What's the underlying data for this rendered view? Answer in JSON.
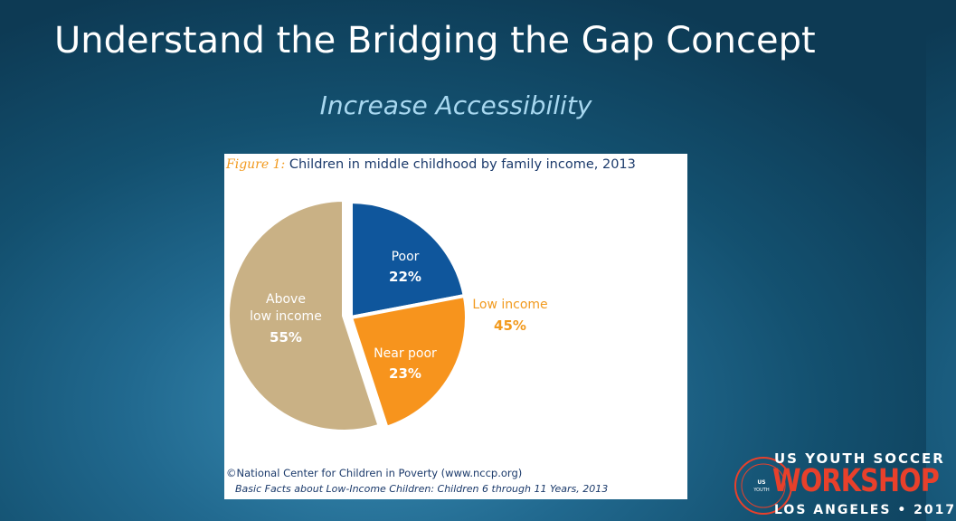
{
  "slide": {
    "title": "Understand the Bridging the Gap Concept",
    "subtitle": "Increase Accessibility"
  },
  "figure": {
    "label": "Figure 1:",
    "title": "Children in middle childhood by family income, 2013",
    "source_line1": "©National Center for Children in Poverty (www.nccp.org)",
    "source_line2": "Basic Facts about Low-Income Children: Children 6 through 11 Years, 2013"
  },
  "chart_data": {
    "type": "pie",
    "title": "Children in middle childhood by family income, 2013",
    "slices": [
      {
        "label": "Poor",
        "value": 22,
        "value_label": "22%",
        "color": "#0f569c"
      },
      {
        "label": "Near poor",
        "value": 23,
        "value_label": "23%",
        "color": "#f7941d"
      },
      {
        "label": "Above low income",
        "label_lines": [
          "Above",
          "low income"
        ],
        "value": 55,
        "value_label": "55%",
        "color": "#c9b185"
      }
    ],
    "group_annotation": {
      "label": "Low income",
      "value": 45,
      "value_label": "45%",
      "color": "#f29a1e"
    }
  },
  "logo": {
    "line1": "US YOUTH SOCCER",
    "line2": "WORKSHOP",
    "line3": "LOS ANGELES • 2017",
    "badge_text": "US YOUTH SOCCER",
    "colors": {
      "accent": "#e8402b",
      "text": "#ffffff"
    }
  }
}
